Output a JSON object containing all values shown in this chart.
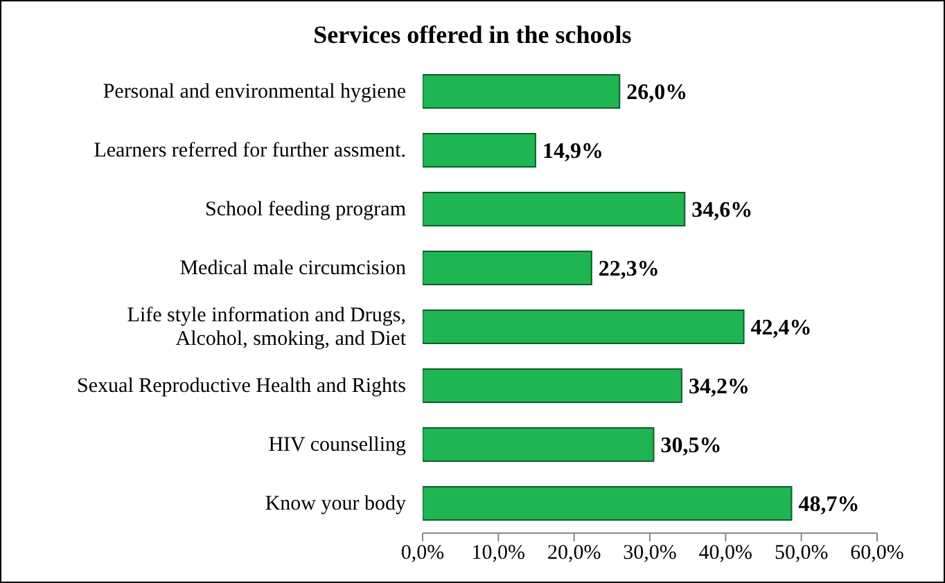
{
  "chart_data": {
    "type": "bar",
    "orientation": "horizontal",
    "title": "Services offered in the schools",
    "categories": [
      "Personal and environmental hygiene",
      "Learners referred for further assment.",
      "School feeding program",
      "Medical male circumcision",
      "Life style information and Drugs, Alcohol, smoking, and Diet",
      "Sexual Reproductive Health and Rights",
      "HIV counselling",
      "Know your body"
    ],
    "values": [
      26.0,
      14.9,
      34.6,
      22.3,
      42.4,
      34.2,
      30.5,
      48.7
    ],
    "value_labels": [
      "26,0%",
      "14,9%",
      "34,6%",
      "22,3%",
      "42,4%",
      "34,2%",
      "30,5%",
      "48,7%"
    ],
    "color": "#1fb553",
    "xlim": [
      0,
      60
    ],
    "xticks": [
      {
        "value": 0,
        "label": "0,0%"
      },
      {
        "value": 10,
        "label": "10,0%"
      },
      {
        "value": 20,
        "label": "20,0%"
      },
      {
        "value": 30,
        "label": "30,0%"
      },
      {
        "value": 40,
        "label": "40,0%"
      },
      {
        "value": 50,
        "label": "50,0%"
      },
      {
        "value": 60,
        "label": "60,0%"
      }
    ],
    "grid": false,
    "legend": false
  }
}
